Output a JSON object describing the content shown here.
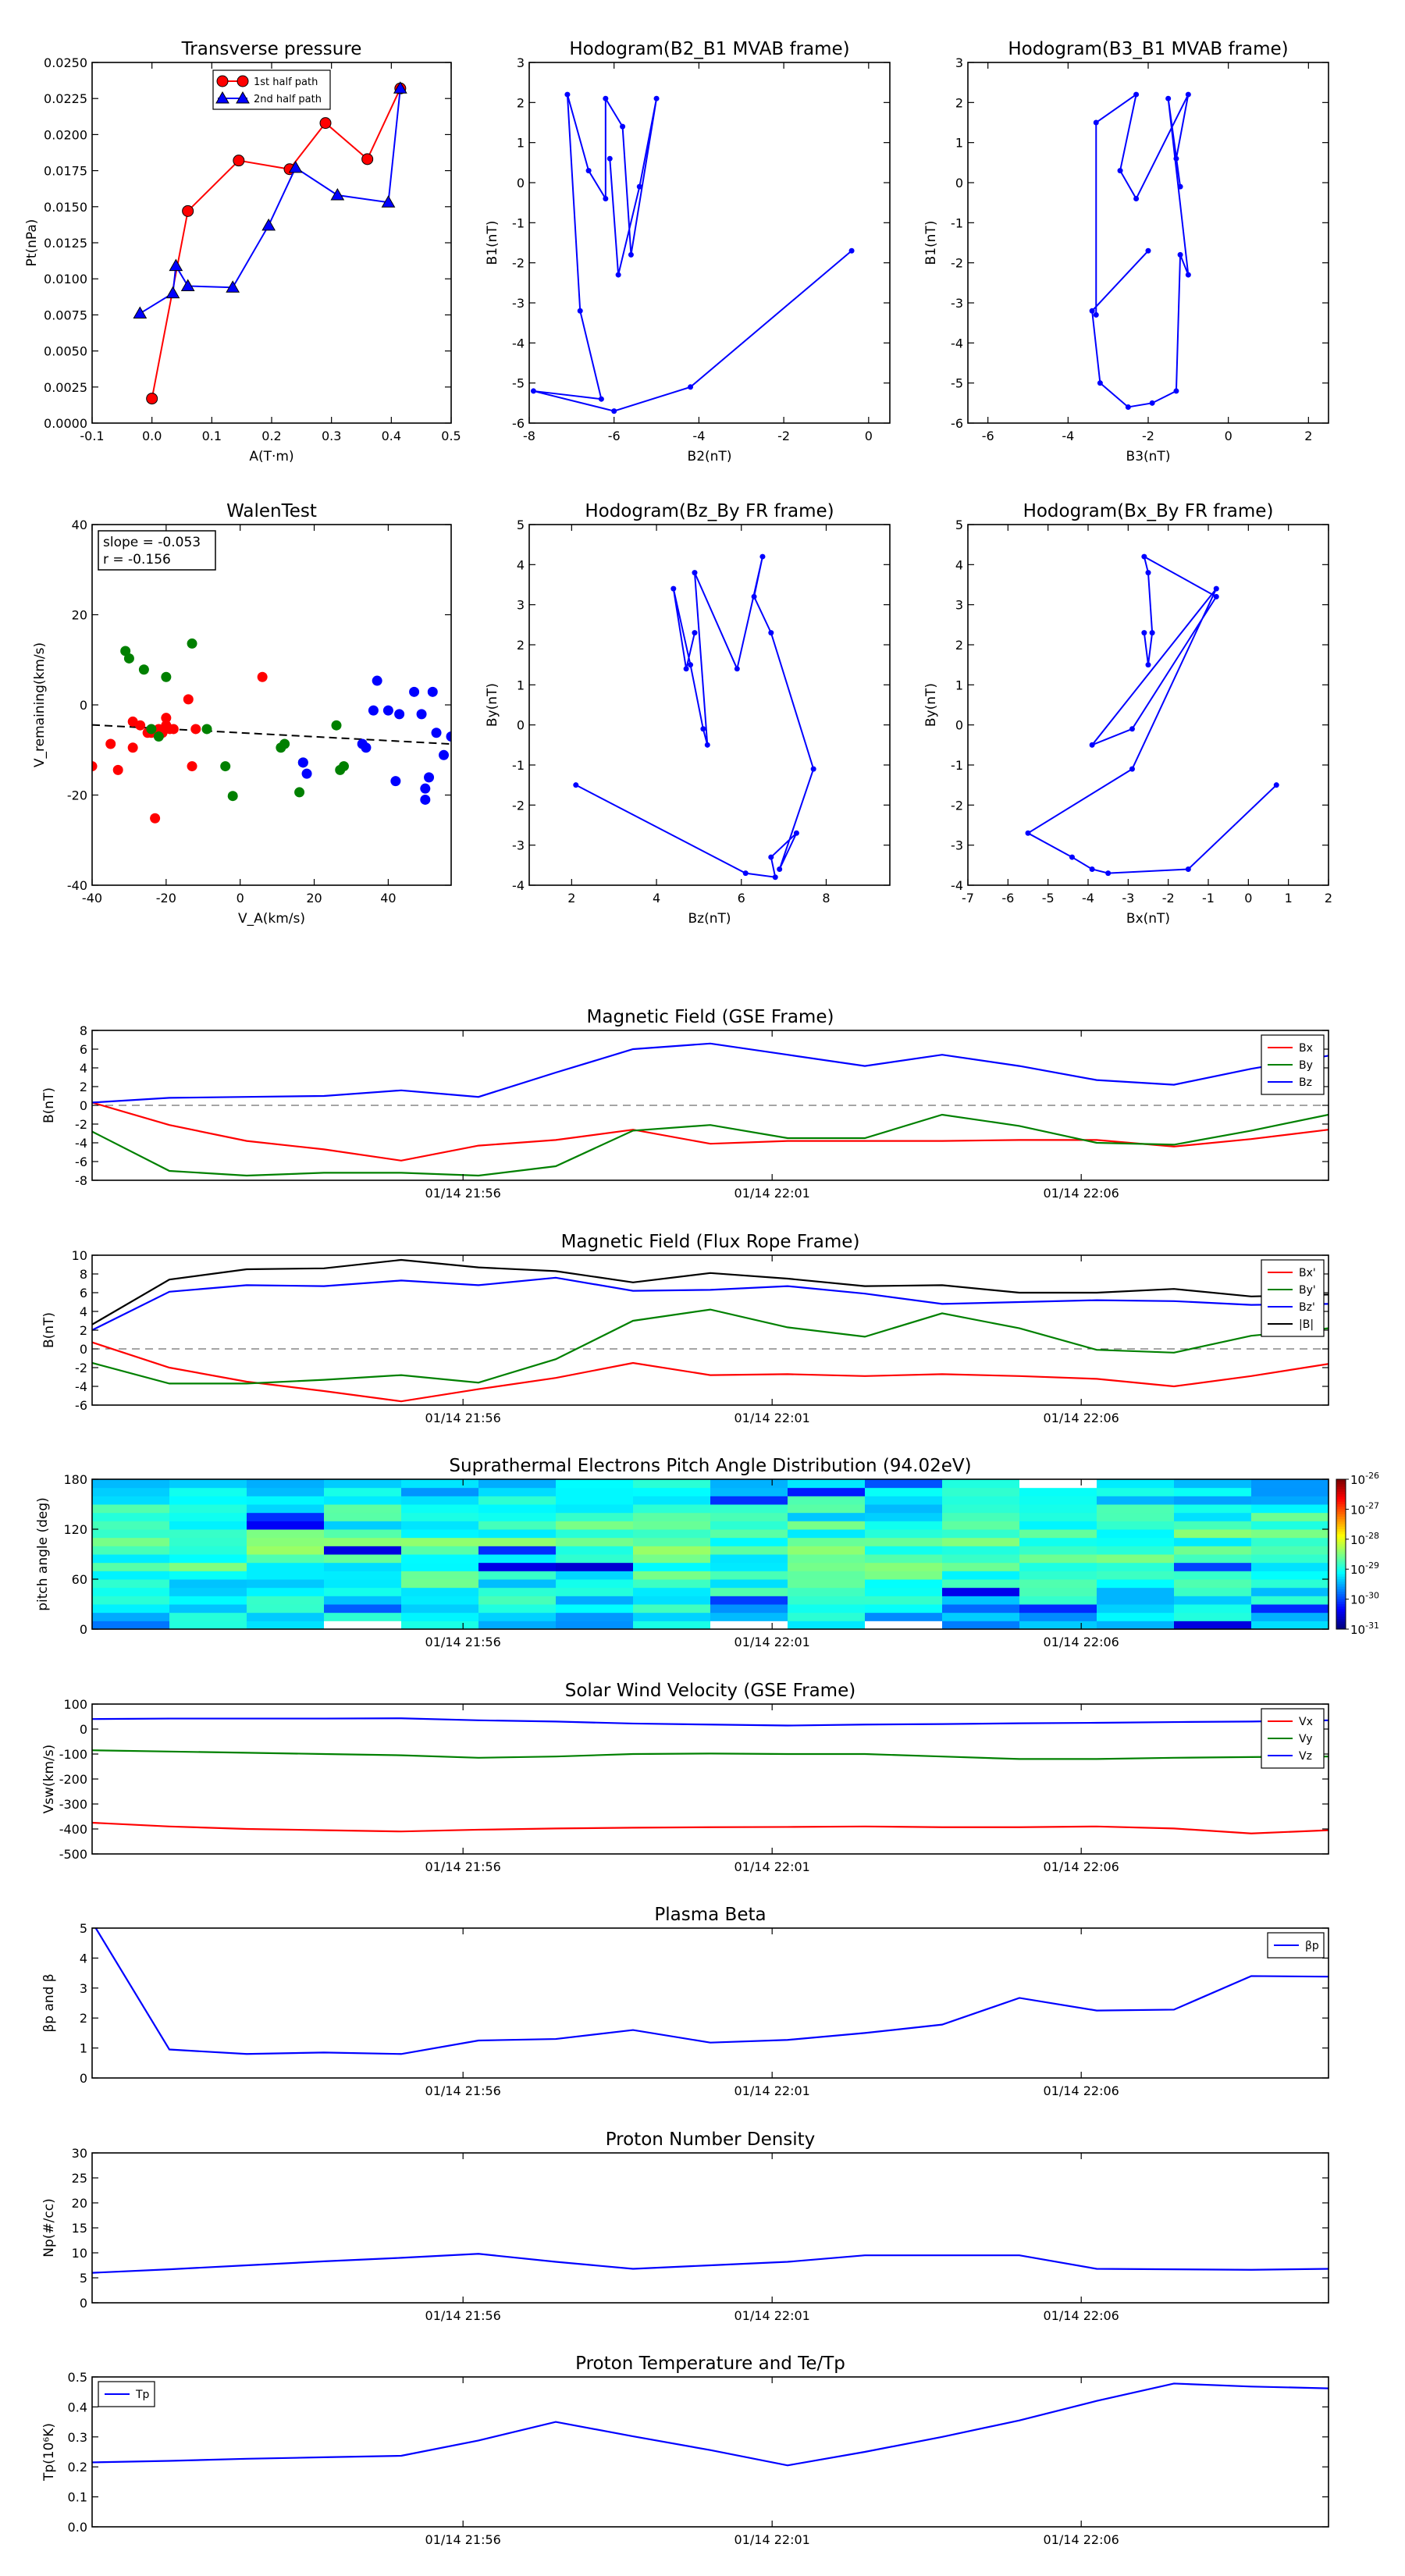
{
  "figure": {
    "time_ticks": [
      "01/14 21:56",
      "01/14 22:01",
      "01/14 22:06"
    ]
  },
  "chart_data": [
    {
      "id": "pt",
      "type": "line",
      "title": "Transverse pressure",
      "xlabel": "A(T·m)",
      "ylabel": "Pt(nPa)",
      "xlim": [
        -0.1,
        0.5
      ],
      "ylim": [
        0,
        0.025
      ],
      "xticks": [
        "-0.1",
        "0.0",
        "0.1",
        "0.2",
        "0.3",
        "0.4",
        "0.5"
      ],
      "yticks": [
        "0.0000",
        "0.0025",
        "0.0050",
        "0.0075",
        "0.0100",
        "0.0125",
        "0.0150",
        "0.0175",
        "0.0200",
        "0.0225",
        "0.0250"
      ],
      "legend": "top-center",
      "series": [
        {
          "name": "1st half path",
          "color": "#ff0000",
          "marker": "circle",
          "x": [
            0.0,
            0.06,
            0.145,
            0.23,
            0.29,
            0.36,
            0.415
          ],
          "y": [
            0.0017,
            0.0147,
            0.0182,
            0.0176,
            0.0208,
            0.0183,
            0.0232
          ]
        },
        {
          "name": "2nd half path",
          "color": "#0000ff",
          "marker": "triangle",
          "x": [
            -0.02,
            0.035,
            0.04,
            0.06,
            0.135,
            0.195,
            0.24,
            0.31,
            0.395,
            0.415
          ],
          "y": [
            0.0076,
            0.009,
            0.0109,
            0.0095,
            0.0094,
            0.0137,
            0.0177,
            0.0158,
            0.0153,
            0.0232
          ]
        }
      ]
    },
    {
      "id": "h1",
      "type": "line",
      "title": "Hodogram(B2_B1 MVAB frame)",
      "xlabel": "B2(nT)",
      "ylabel": "B1(nT)",
      "xlim": [
        -8,
        0.5
      ],
      "ylim": [
        -6,
        3
      ],
      "xticks": [
        "-8",
        "-6",
        "-4",
        "-2",
        "0"
      ],
      "yticks": [
        "-6",
        "-5",
        "-4",
        "-3",
        "-2",
        "-1",
        "0",
        "1",
        "2",
        "3"
      ],
      "series": [
        {
          "name": "",
          "color": "#0000ff",
          "x": [
            -0.4,
            -4.2,
            -6.0,
            -7.9,
            -6.3,
            -6.8,
            -7.1,
            -6.6,
            -6.2,
            -6.2,
            -5.8,
            -5.6,
            -5.0,
            -5.4,
            -5.9,
            -6.1
          ],
          "y": [
            -1.7,
            -5.1,
            -5.7,
            -5.2,
            -5.4,
            -3.2,
            2.2,
            0.3,
            -0.4,
            2.1,
            1.4,
            -1.8,
            2.1,
            -0.1,
            -2.3,
            0.6
          ]
        }
      ]
    },
    {
      "id": "h2",
      "type": "line",
      "title": "Hodogram(B3_B1 MVAB frame)",
      "xlabel": "B3(nT)",
      "ylabel": "B1(nT)",
      "xlim": [
        -6.5,
        2.5
      ],
      "ylim": [
        -6,
        3
      ],
      "xticks": [
        "-6",
        "-4",
        "-2",
        "0",
        "2"
      ],
      "yticks": [
        "-6",
        "-5",
        "-4",
        "-3",
        "-2",
        "-1",
        "0",
        "1",
        "2",
        "3"
      ],
      "series": [
        {
          "name": "",
          "color": "#0000ff",
          "x": [
            -2.0,
            -3.4,
            -3.2,
            -2.5,
            -1.9,
            -1.3,
            -1.2,
            -1.0,
            -1.5,
            -1.2,
            -1.3,
            -1.0,
            -2.3,
            -2.7,
            -2.3,
            -3.3,
            -3.3
          ],
          "y": [
            -1.7,
            -3.2,
            -5.0,
            -5.6,
            -5.5,
            -5.2,
            -1.8,
            -2.3,
            2.1,
            -0.1,
            0.6,
            2.2,
            -0.4,
            0.3,
            2.2,
            1.5,
            -3.3
          ]
        }
      ]
    },
    {
      "id": "walen",
      "type": "scatter",
      "title": "WalenTest",
      "xlabel": "V_A(km/s)",
      "ylabel": "V_remaining(km/s)",
      "xlim": [
        -40,
        57
      ],
      "ylim": [
        -40,
        57
      ],
      "xticks": [
        "-40",
        "-20",
        "0",
        "20",
        "40"
      ],
      "yticks": [
        "-40",
        "-20",
        "0",
        "20",
        "40"
      ],
      "annotation": [
        "slope = -0.053",
        "r = -0.156"
      ],
      "fit": {
        "slope": -0.053,
        "intercept": 1.0
      },
      "series": [
        {
          "name": "",
          "color": "#ff0000",
          "x": [
            -40,
            -35,
            -33,
            -29,
            -29,
            -27,
            -25,
            -24,
            -23,
            -22,
            -21,
            -20,
            -20,
            -19,
            -18,
            -14,
            -13,
            -12,
            6
          ],
          "y": [
            -8,
            -2,
            -9,
            4,
            -3,
            3,
            1,
            1,
            -22,
            2,
            1,
            5,
            3,
            2,
            2,
            10,
            -8,
            2,
            16
          ]
        },
        {
          "name": "",
          "color": "#008000",
          "x": [
            -31,
            -30,
            -26,
            -24,
            -22,
            -20,
            -13,
            -9,
            -4,
            -2,
            11,
            12,
            16,
            17,
            26,
            27,
            28
          ],
          "y": [
            23,
            21,
            18,
            2,
            0,
            16,
            25,
            2,
            -8,
            -16,
            -3,
            -2,
            -15,
            -7,
            3,
            -9,
            -8
          ],
          "stroke": "#008000"
        },
        {
          "name": "",
          "color": "#0000ff",
          "x": [
            17,
            18,
            33,
            34,
            36,
            37,
            40,
            42,
            43,
            47,
            49,
            50,
            50,
            51,
            52,
            53,
            55,
            57
          ],
          "y": [
            -7,
            -10,
            -2,
            -3,
            7,
            15,
            7,
            -12,
            6,
            12,
            6,
            -14,
            -17,
            -11,
            12,
            1,
            -5,
            0
          ]
        }
      ]
    },
    {
      "id": "h3",
      "type": "line",
      "title": "Hodogram(Bz_By FR frame)",
      "xlabel": "Bz(nT)",
      "ylabel": "By(nT)",
      "xlim": [
        1,
        9.5
      ],
      "ylim": [
        -4,
        5
      ],
      "xticks": [
        "2",
        "4",
        "6",
        "8"
      ],
      "yticks": [
        "-4",
        "-3",
        "-2",
        "-1",
        "0",
        "1",
        "2",
        "3",
        "4",
        "5"
      ],
      "series": [
        {
          "name": "",
          "color": "#0000ff",
          "x": [
            2.1,
            6.1,
            6.8,
            6.7,
            7.3,
            6.9,
            7.7,
            6.7,
            6.3,
            6.5,
            5.9,
            4.9,
            5.2,
            5.1,
            4.8,
            4.4,
            4.7,
            4.9
          ],
          "y": [
            -1.5,
            -3.7,
            -3.8,
            -3.3,
            -2.7,
            -3.6,
            -1.1,
            2.3,
            3.2,
            4.2,
            1.4,
            3.8,
            -0.5,
            -0.1,
            1.5,
            3.4,
            1.4,
            2.3
          ]
        }
      ]
    },
    {
      "id": "h4",
      "type": "line",
      "title": "Hodogram(Bx_By FR frame)",
      "xlabel": "Bx(nT)",
      "ylabel": "By(nT)",
      "xlim": [
        -7,
        2
      ],
      "ylim": [
        -4,
        5
      ],
      "xticks": [
        "-7",
        "-6",
        "-5",
        "-4",
        "-3",
        "-2",
        "-1",
        "0",
        "1",
        "2"
      ],
      "yticks": [
        "-4",
        "-3",
        "-2",
        "-1",
        "0",
        "1",
        "2",
        "3",
        "4",
        "5"
      ],
      "series": [
        {
          "name": "",
          "color": "#0000ff",
          "x": [
            0.7,
            -1.5,
            -3.5,
            -3.9,
            -4.4,
            -5.5,
            -2.9,
            -0.8,
            -3.9,
            -2.9,
            -0.8,
            -2.6,
            -2.5,
            -2.4,
            -2.5,
            -2.6
          ],
          "y": [
            -1.5,
            -3.6,
            -3.7,
            -3.6,
            -3.3,
            -2.7,
            -1.1,
            3.4,
            -0.5,
            -0.1,
            3.2,
            4.2,
            3.8,
            2.3,
            1.5,
            2.3
          ]
        }
      ]
    },
    {
      "id": "mag_gse",
      "type": "line",
      "title": "Magnetic Field (GSE Frame)",
      "xlabel": "",
      "ylabel": "B(nT)",
      "xlim": [
        0,
        16
      ],
      "ylim": [
        -8,
        8
      ],
      "yticks": [
        "-8",
        "-6",
        "-4",
        "-2",
        "0",
        "2",
        "4",
        "6",
        "8"
      ],
      "zero_line": true,
      "legend": "top-right",
      "series": [
        {
          "name": "Bx",
          "color": "#ff0000",
          "values": [
            0.3,
            -2.1,
            -3.8,
            -4.7,
            -5.9,
            -4.3,
            -3.7,
            -2.6,
            -4.1,
            -3.8,
            -3.8,
            -3.8,
            -3.7,
            -3.7,
            -4.4,
            -3.6,
            -2.6
          ]
        },
        {
          "name": "By",
          "color": "#008000",
          "values": [
            -2.8,
            -7.0,
            -7.5,
            -7.2,
            -7.2,
            -7.5,
            -6.5,
            -2.7,
            -2.1,
            -3.5,
            -3.5,
            -1.0,
            -2.2,
            -4.0,
            -4.2,
            -2.7,
            -1.0
          ]
        },
        {
          "name": "Bz",
          "color": "#0000ff",
          "values": [
            0.3,
            0.8,
            0.9,
            1.0,
            1.6,
            0.9,
            3.5,
            6.0,
            6.6,
            5.4,
            4.2,
            5.4,
            4.2,
            2.7,
            2.2,
            3.9,
            5.3
          ]
        }
      ]
    },
    {
      "id": "mag_fr",
      "type": "line",
      "title": "Magnetic Field (Flux Rope Frame)",
      "xlabel": "",
      "ylabel": "B(nT)",
      "xlim": [
        0,
        16
      ],
      "ylim": [
        -6,
        10
      ],
      "yticks": [
        "-6",
        "-4",
        "-2",
        "0",
        "2",
        "4",
        "6",
        "8",
        "10"
      ],
      "zero_line": true,
      "legend": "top-right",
      "series": [
        {
          "name": "Bx'",
          "color": "#ff0000",
          "values": [
            0.7,
            -2.0,
            -3.5,
            -4.5,
            -5.6,
            -4.3,
            -3.1,
            -1.5,
            -2.8,
            -2.7,
            -2.9,
            -2.7,
            -2.9,
            -3.2,
            -4.0,
            -2.9,
            -1.6
          ]
        },
        {
          "name": "By'",
          "color": "#008000",
          "values": [
            -1.5,
            -3.7,
            -3.7,
            -3.3,
            -2.8,
            -3.6,
            -1.1,
            3.0,
            4.2,
            2.3,
            1.3,
            3.8,
            2.2,
            -0.1,
            -0.4,
            1.4,
            2.2
          ]
        },
        {
          "name": "Bz'",
          "color": "#0000ff",
          "values": [
            2.0,
            6.1,
            6.8,
            6.7,
            7.3,
            6.8,
            7.6,
            6.2,
            6.3,
            6.7,
            5.9,
            4.8,
            5.0,
            5.2,
            5.1,
            4.7,
            4.8
          ]
        },
        {
          "name": "|B|",
          "color": "#000000",
          "values": [
            2.6,
            7.4,
            8.5,
            8.6,
            9.5,
            8.7,
            8.3,
            7.1,
            8.1,
            7.5,
            6.7,
            6.8,
            6.0,
            6.0,
            6.4,
            5.6,
            5.8
          ]
        }
      ]
    },
    {
      "id": "pad",
      "type": "heatmap",
      "title": "Suprathermal Electrons Pitch Angle Distribution (94.02eV)",
      "ylabel": "pitch angle (deg)",
      "xlim": [
        0,
        16
      ],
      "ylim": [
        0,
        180
      ],
      "yticks": [
        "0",
        "60",
        "120",
        "180"
      ],
      "colorbar_ticks": [
        "10-26",
        "10-27",
        "10-28",
        "10-29",
        "10-30",
        "10-31"
      ],
      "colorbar_base": "10",
      "colorbar_exponents": [
        "-26",
        "-27",
        "-28",
        "-29",
        "-30",
        "-31"
      ],
      "bins_pitch": 18,
      "bins_time": 16,
      "log_range": [
        -31,
        -26
      ]
    },
    {
      "id": "vsw",
      "type": "line",
      "title": "Solar Wind Velocity (GSE Frame)",
      "xlabel": "",
      "ylabel": "Vsw(km/s)",
      "xlim": [
        0,
        16
      ],
      "ylim": [
        -500,
        100
      ],
      "yticks": [
        "-500",
        "-400",
        "-300",
        "-200",
        "-100",
        "0",
        "100"
      ],
      "legend": "top-right",
      "series": [
        {
          "name": "Vx",
          "color": "#ff0000",
          "values": [
            -375,
            -390,
            -400,
            -405,
            -410,
            -403,
            -398,
            -395,
            -393,
            -392,
            -390,
            -393,
            -393,
            -390,
            -398,
            -418,
            -405
          ]
        },
        {
          "name": "Vy",
          "color": "#008000",
          "values": [
            -85,
            -90,
            -95,
            -100,
            -105,
            -115,
            -110,
            -100,
            -98,
            -100,
            -100,
            -110,
            -120,
            -120,
            -115,
            -112,
            -110
          ]
        },
        {
          "name": "Vz",
          "color": "#0000ff",
          "values": [
            40,
            42,
            42,
            42,
            43,
            35,
            30,
            22,
            18,
            14,
            18,
            20,
            23,
            25,
            28,
            30,
            35
          ]
        }
      ]
    },
    {
      "id": "beta",
      "type": "line",
      "title": "Plasma Beta",
      "xlabel": "",
      "ylabel": "βp and β",
      "xlim": [
        0,
        16
      ],
      "ylim": [
        0,
        5
      ],
      "yticks": [
        "0",
        "1",
        "2",
        "3",
        "4",
        "5"
      ],
      "legend": "top-right",
      "series": [
        {
          "name": "βp",
          "color": "#0000ff",
          "values": [
            5.2,
            0.95,
            0.8,
            0.85,
            0.8,
            1.25,
            1.3,
            1.6,
            1.18,
            1.27,
            1.5,
            1.78,
            2.67,
            2.25,
            2.28,
            3.4,
            3.38
          ]
        }
      ]
    },
    {
      "id": "np",
      "type": "line",
      "title": "Proton Number Density",
      "xlabel": "",
      "ylabel": "Np(#/cc)",
      "xlim": [
        0,
        16
      ],
      "ylim": [
        0,
        30
      ],
      "yticks": [
        "0",
        "5",
        "10",
        "15",
        "20",
        "25",
        "30"
      ],
      "series": [
        {
          "name": "",
          "color": "#0000ff",
          "values": [
            6.0,
            6.7,
            7.5,
            8.3,
            9.0,
            9.8,
            8.2,
            6.8,
            7.5,
            8.2,
            9.5,
            9.5,
            9.5,
            6.8,
            6.7,
            6.6,
            6.8
          ]
        }
      ]
    },
    {
      "id": "tp",
      "type": "line",
      "title": "Proton Temperature and Te/Tp",
      "xlabel": "",
      "ylabel": "Tp(10⁶K)",
      "xlim": [
        0,
        16
      ],
      "ylim": [
        0,
        0.5
      ],
      "yticks": [
        "0.0",
        "0.1",
        "0.2",
        "0.3",
        "0.4",
        "0.5"
      ],
      "legend": "top-left",
      "series": [
        {
          "name": "Tp",
          "color": "#0000ff",
          "values": [
            0.215,
            0.22,
            0.227,
            0.232,
            0.237,
            0.288,
            0.35,
            0.302,
            0.256,
            0.205,
            0.25,
            0.3,
            0.355,
            0.42,
            0.478,
            0.468,
            0.462
          ]
        }
      ]
    }
  ]
}
